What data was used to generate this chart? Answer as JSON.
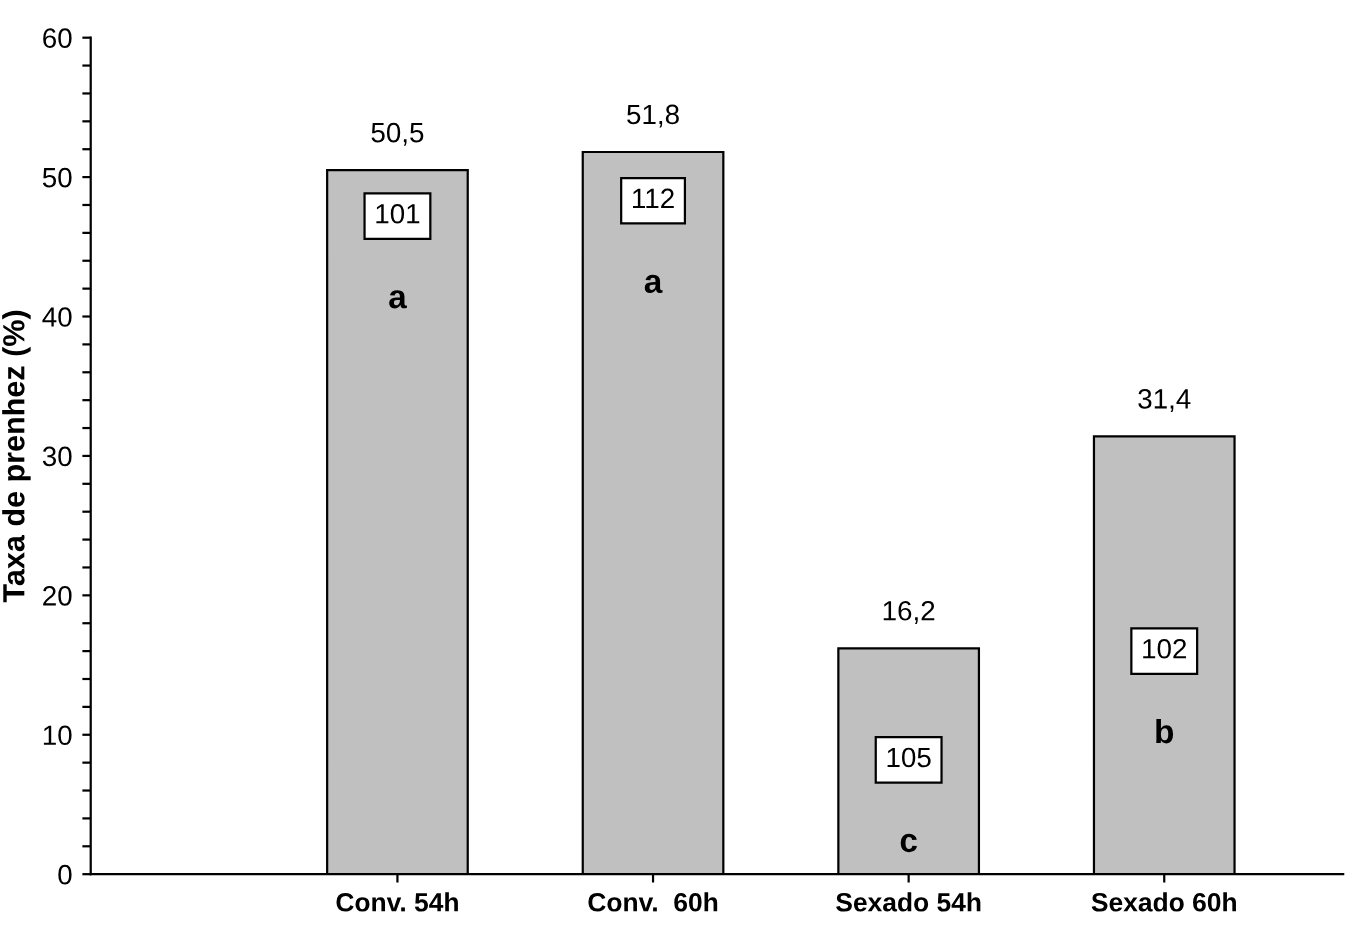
{
  "chart_data": {
    "type": "bar",
    "ylabel": "Taxa de prenhez (%)",
    "categories": [
      "Conv. 54h",
      "Conv.  60h",
      "Sexado 54h",
      "Sexado 60h"
    ],
    "values": [
      50.5,
      51.8,
      16.2,
      31.4
    ],
    "value_labels": [
      "50,5",
      "51,8",
      "16,2",
      "31,4"
    ],
    "color": "#c0c0c0",
    "ylim": [
      0,
      60
    ],
    "yticks": [
      0,
      {
        "value": 2,
        "label": null
      },
      {
        "value": 4,
        "label": null
      },
      {
        "value": 6,
        "label": null
      },
      {
        "value": 8,
        "label": null
      },
      10,
      {
        "value": 12,
        "label": null
      },
      {
        "value": 14,
        "label": null
      },
      {
        "value": 16,
        "label": null
      },
      {
        "value": 18,
        "label": null
      },
      20,
      {
        "value": 22,
        "label": null
      },
      {
        "value": 24,
        "label": null
      },
      {
        "value": 26,
        "label": null
      },
      {
        "value": 28,
        "label": null
      },
      30,
      {
        "value": 32,
        "label": null
      },
      {
        "value": 34,
        "label": null
      },
      {
        "value": 36,
        "label": null
      },
      {
        "value": 38,
        "label": null
      },
      40,
      {
        "value": 42,
        "label": null
      },
      {
        "value": 44,
        "label": null
      },
      {
        "value": 46,
        "label": null
      },
      {
        "value": 48,
        "label": null
      },
      50,
      {
        "value": 52,
        "label": null
      },
      {
        "value": 54,
        "label": null
      },
      {
        "value": 56,
        "label": null
      },
      {
        "value": 58,
        "label": null
      },
      60
    ],
    "annotations": [
      {
        "text": "101",
        "x": "Conv. 54h",
        "y": 47.2
      },
      {
        "text": "112",
        "x": "Conv.  60h",
        "y": 48.3
      },
      {
        "text": "105",
        "x": "Sexado 54h",
        "y": 8.2
      },
      {
        "text": "102",
        "x": "Sexado 60h",
        "y": 16
      },
      "a",
      "a",
      "c",
      "b"
    ],
    "grid": false,
    "legend": false
  }
}
